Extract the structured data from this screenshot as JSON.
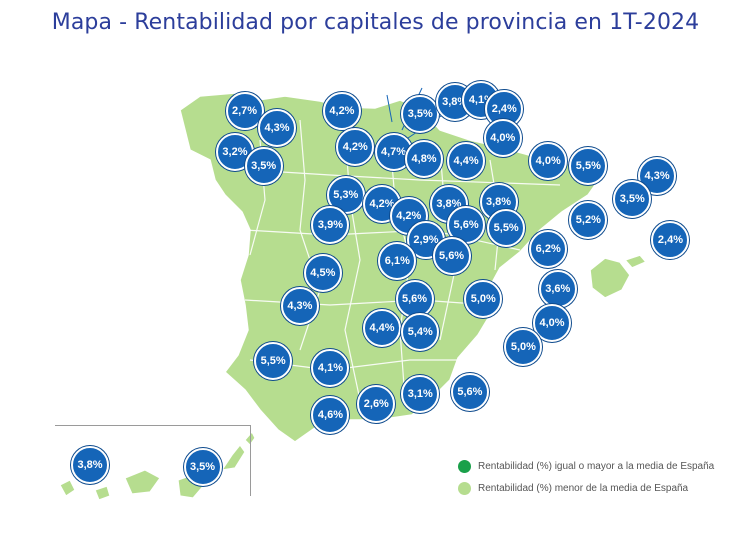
{
  "title": "Mapa - Rentabilidad por capitales de provincia en 1T-2024",
  "colors": {
    "land_fill": "#b6dd8f",
    "border": "#ffffff",
    "badge": "#1565b8",
    "above_average": "#1aa04a",
    "below_average": "#b6dd8f",
    "title": "#2c3e9b"
  },
  "legend": [
    {
      "label": "Rentabilidad (%) igual o mayor a la media de España",
      "color": "#1aa04a"
    },
    {
      "label": "Rentabilidad (%) menor de la media de España",
      "color": "#b6dd8f"
    }
  ],
  "markers": [
    {
      "value": "2,7%",
      "lon": -8.4,
      "lat": 43.35
    },
    {
      "value": "4,3%",
      "lon": -7.55,
      "lat": 43.0
    },
    {
      "value": "3,2%",
      "lon": -8.65,
      "lat": 42.5
    },
    {
      "value": "3,5%",
      "lon": -7.9,
      "lat": 42.2
    },
    {
      "value": "4,2%",
      "lon": -5.85,
      "lat": 43.36
    },
    {
      "value": "3,5%",
      "lon": -3.8,
      "lat": 43.3
    },
    {
      "value": "3,8%",
      "lon": -2.9,
      "lat": 43.55
    },
    {
      "value": "4,1%",
      "lon": -2.2,
      "lat": 43.6
    },
    {
      "value": "2,4%",
      "lon": -1.6,
      "lat": 43.4
    },
    {
      "value": "4,2%",
      "lon": -5.5,
      "lat": 42.6
    },
    {
      "value": "4,7%",
      "lon": -4.5,
      "lat": 42.5
    },
    {
      "value": "4,8%",
      "lon": -3.7,
      "lat": 42.35
    },
    {
      "value": "4,4%",
      "lon": -2.6,
      "lat": 42.3
    },
    {
      "value": "4,0%",
      "lon": -1.64,
      "lat": 42.8
    },
    {
      "value": "4,0%",
      "lon": -0.45,
      "lat": 42.3
    },
    {
      "value": "5,5%",
      "lon": 0.6,
      "lat": 42.2
    },
    {
      "value": "4,3%",
      "lon": 2.4,
      "lat": 42.0
    },
    {
      "value": "3,5%",
      "lon": 1.75,
      "lat": 41.5
    },
    {
      "value": "5,3%",
      "lon": -5.75,
      "lat": 41.6
    },
    {
      "value": "4,2%",
      "lon": -4.8,
      "lat": 41.4
    },
    {
      "value": "4,2%",
      "lon": -4.1,
      "lat": 41.15
    },
    {
      "value": "3,8%",
      "lon": -3.05,
      "lat": 41.4
    },
    {
      "value": "3,8%",
      "lon": -1.75,
      "lat": 41.44
    },
    {
      "value": "5,2%",
      "lon": 0.6,
      "lat": 41.06
    },
    {
      "value": "2,4%",
      "lon": 2.75,
      "lat": 40.65
    },
    {
      "value": "3,9%",
      "lon": -6.15,
      "lat": 40.95
    },
    {
      "value": "2,9%",
      "lon": -3.65,
      "lat": 40.65
    },
    {
      "value": "5,6%",
      "lon": -2.6,
      "lat": 40.95
    },
    {
      "value": "5,5%",
      "lon": -1.55,
      "lat": 40.9
    },
    {
      "value": "6,1%",
      "lon": -4.4,
      "lat": 40.2
    },
    {
      "value": "5,6%",
      "lon": -2.98,
      "lat": 40.3
    },
    {
      "value": "6,2%",
      "lon": -0.45,
      "lat": 40.45
    },
    {
      "value": "4,5%",
      "lon": -6.35,
      "lat": 39.95
    },
    {
      "value": "3,6%",
      "lon": -0.2,
      "lat": 39.62
    },
    {
      "value": "5,6%",
      "lon": -3.95,
      "lat": 39.4
    },
    {
      "value": "5,0%",
      "lon": -2.15,
      "lat": 39.4
    },
    {
      "value": "4,3%",
      "lon": -6.95,
      "lat": 39.25
    },
    {
      "value": "4,0%",
      "lon": -0.35,
      "lat": 38.9
    },
    {
      "value": "4,4%",
      "lon": -4.8,
      "lat": 38.8
    },
    {
      "value": "5,4%",
      "lon": -3.8,
      "lat": 38.7
    },
    {
      "value": "5,0%",
      "lon": -1.1,
      "lat": 38.38
    },
    {
      "value": "5,5%",
      "lon": -7.65,
      "lat": 38.1
    },
    {
      "value": "4,1%",
      "lon": -6.15,
      "lat": 37.95
    },
    {
      "value": "2,6%",
      "lon": -4.95,
      "lat": 37.2
    },
    {
      "value": "3,1%",
      "lon": -3.8,
      "lat": 37.4
    },
    {
      "value": "5,6%",
      "lon": -2.5,
      "lat": 37.45
    },
    {
      "value": "4,6%",
      "lon": -6.15,
      "lat": 36.95
    },
    {
      "value": "3,8%",
      "lon": -17.8,
      "lat": 28.1
    },
    {
      "value": "3,5%",
      "lon": -15.55,
      "lat": 28.0
    }
  ]
}
